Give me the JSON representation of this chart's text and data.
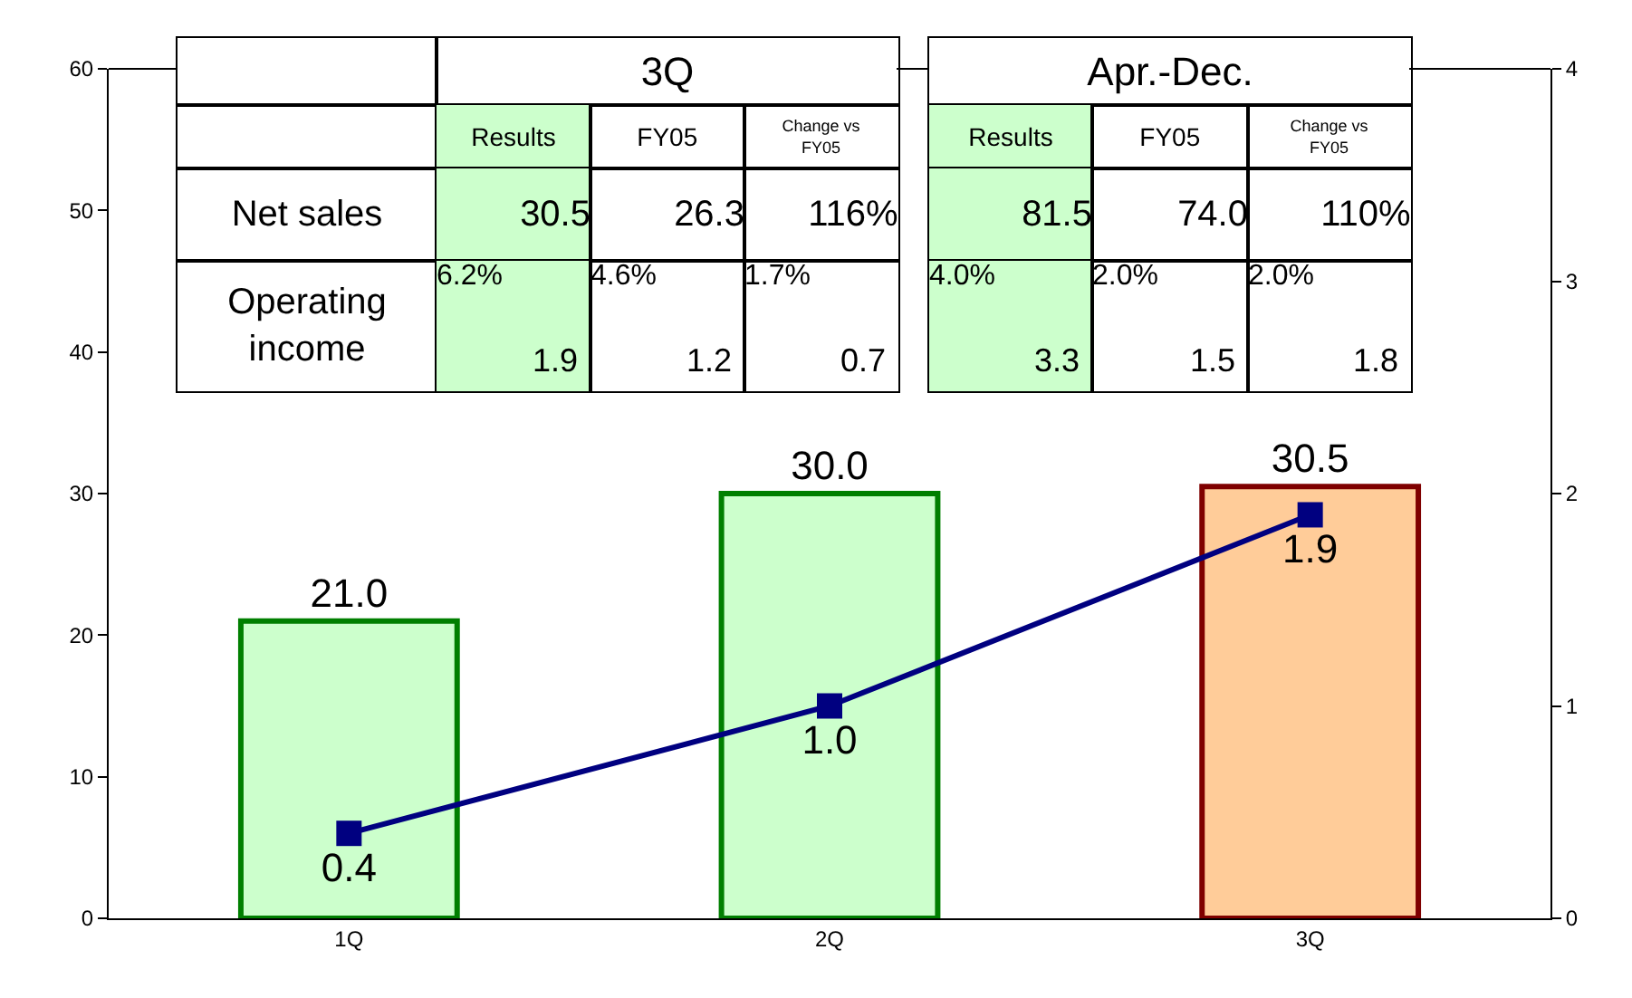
{
  "chart_data": {
    "type": "bar",
    "categories": [
      "1Q",
      "2Q",
      "3Q"
    ],
    "series": [
      {
        "colors": [
          "#ccffcc",
          "#ccffcc",
          "#ffcc99"
        ],
        "values": [
          21.0,
          30.0,
          30.5
        ],
        "value_labels": [
          "21.0",
          "30.0",
          "30.5"
        ]
      },
      {
        "type": "line",
        "axis": "y2",
        "color": "#000080",
        "values": [
          0.4,
          1.0,
          1.9
        ],
        "value_labels": [
          "0.4",
          "1.0",
          "1.9"
        ],
        "marker": "square",
        "line_style": "solid"
      }
    ],
    "ylim": [
      0,
      60
    ],
    "yticks": [
      0,
      10,
      20,
      30,
      40,
      50,
      60
    ],
    "y2lim": [
      0,
      4
    ],
    "y2ticks": [
      0,
      1,
      2,
      3,
      4
    ],
    "annotations": [
      "3Q",
      "Results",
      "FY05",
      "Change vs FY05",
      "Net sales",
      "30.5",
      "26.3",
      "116%",
      "Operating income",
      "6.2%",
      "1.9",
      "4.6%",
      "1.2",
      "1.7%",
      "0.7",
      "Apr.-Dec.",
      "Results",
      "FY05",
      "Change vs FY05",
      "81.5",
      "74.0",
      "110%",
      "4.0%",
      "3.3",
      "2.0%",
      "1.5",
      "2.0%",
      "1.8"
    ]
  }
}
